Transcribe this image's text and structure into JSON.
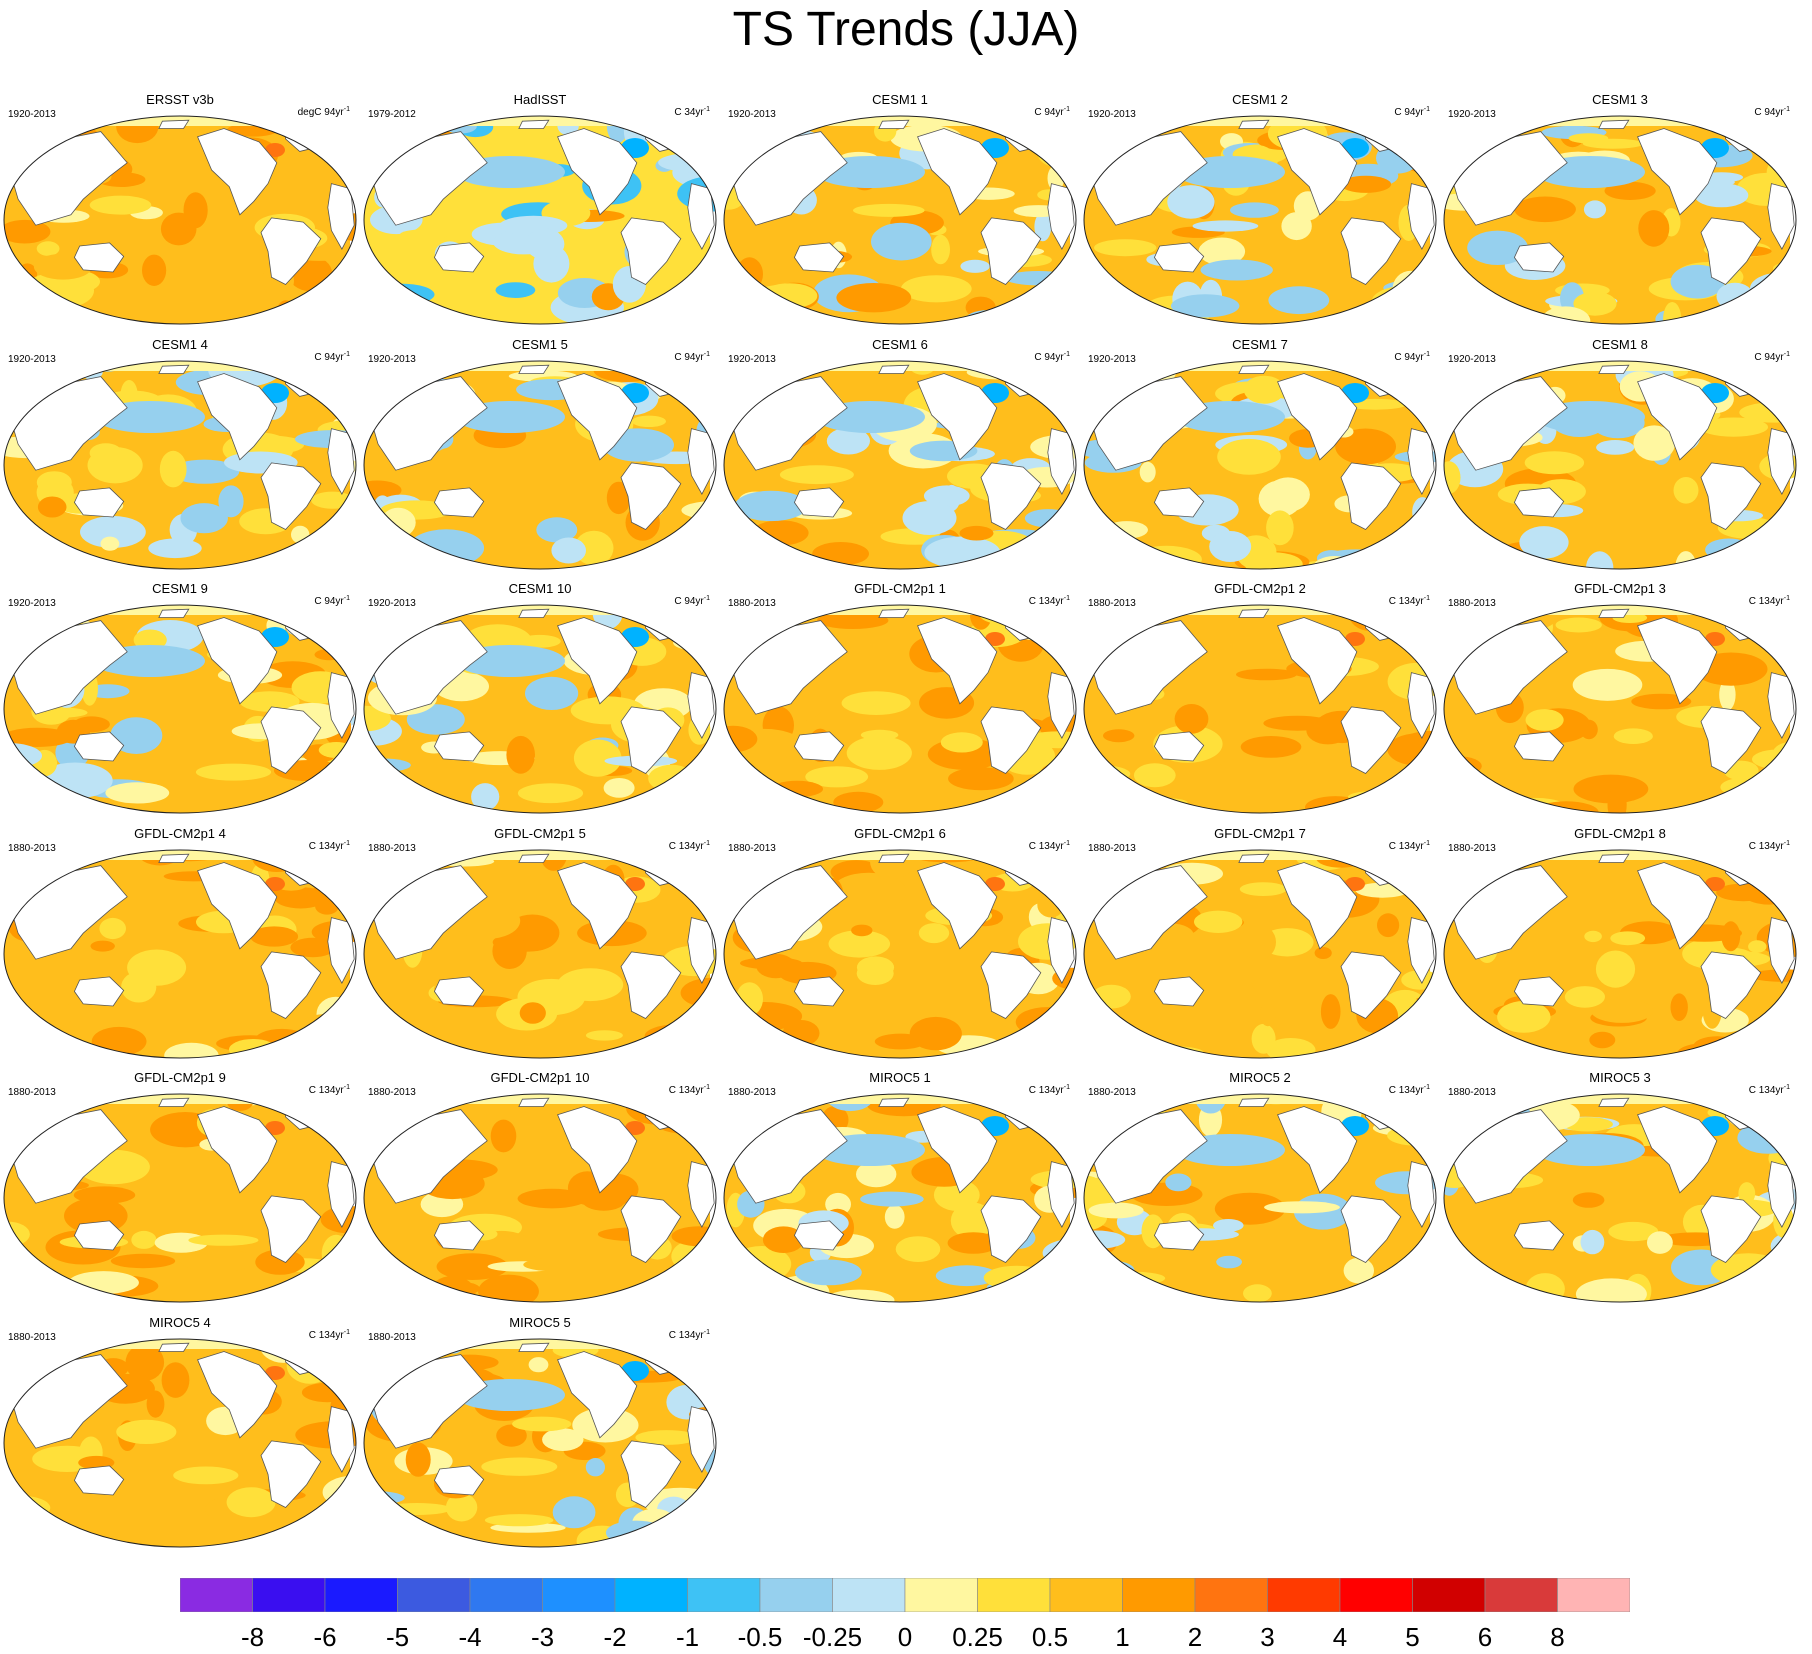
{
  "title": "TS Trends (JJA)",
  "chart_data": {
    "type": "heatmap",
    "description_free": true,
    "panels": [
      {
        "title": "ERSST v3b",
        "period": "1920-2013",
        "units": "degC 94yr",
        "units_exp": "-1",
        "pattern": "warm"
      },
      {
        "title": "HadISST",
        "period": "1979-2012",
        "units": "C 34yr",
        "units_exp": "-1",
        "pattern": "cool"
      },
      {
        "title": "CESM1 1",
        "period": "1920-2013",
        "units": "C 94yr",
        "units_exp": "-1",
        "pattern": "mixed"
      },
      {
        "title": "CESM1 2",
        "period": "1920-2013",
        "units": "C 94yr",
        "units_exp": "-1",
        "pattern": "mixed"
      },
      {
        "title": "CESM1 3",
        "period": "1920-2013",
        "units": "C 94yr",
        "units_exp": "-1",
        "pattern": "mixed"
      },
      {
        "title": "CESM1 4",
        "period": "1920-2013",
        "units": "C 94yr",
        "units_exp": "-1",
        "pattern": "mixed"
      },
      {
        "title": "CESM1 5",
        "period": "1920-2013",
        "units": "C 94yr",
        "units_exp": "-1",
        "pattern": "mixed"
      },
      {
        "title": "CESM1 6",
        "period": "1920-2013",
        "units": "C 94yr",
        "units_exp": "-1",
        "pattern": "mixed"
      },
      {
        "title": "CESM1 7",
        "period": "1920-2013",
        "units": "C 94yr",
        "units_exp": "-1",
        "pattern": "mixed"
      },
      {
        "title": "CESM1 8",
        "period": "1920-2013",
        "units": "C 94yr",
        "units_exp": "-1",
        "pattern": "mixed"
      },
      {
        "title": "CESM1 9",
        "period": "1920-2013",
        "units": "C 94yr",
        "units_exp": "-1",
        "pattern": "mixed"
      },
      {
        "title": "CESM1 10",
        "period": "1920-2013",
        "units": "C 94yr",
        "units_exp": "-1",
        "pattern": "mixed"
      },
      {
        "title": "GFDL-CM2p1 1",
        "period": "1880-2013",
        "units": "C 134yr",
        "units_exp": "-1",
        "pattern": "warm"
      },
      {
        "title": "GFDL-CM2p1 2",
        "period": "1880-2013",
        "units": "C 134yr",
        "units_exp": "-1",
        "pattern": "warm"
      },
      {
        "title": "GFDL-CM2p1 3",
        "period": "1880-2013",
        "units": "C 134yr",
        "units_exp": "-1",
        "pattern": "warm"
      },
      {
        "title": "GFDL-CM2p1 4",
        "period": "1880-2013",
        "units": "C 134yr",
        "units_exp": "-1",
        "pattern": "warm"
      },
      {
        "title": "GFDL-CM2p1 5",
        "period": "1880-2013",
        "units": "C 134yr",
        "units_exp": "-1",
        "pattern": "warm"
      },
      {
        "title": "GFDL-CM2p1 6",
        "period": "1880-2013",
        "units": "C 134yr",
        "units_exp": "-1",
        "pattern": "warm"
      },
      {
        "title": "GFDL-CM2p1 7",
        "period": "1880-2013",
        "units": "C 134yr",
        "units_exp": "-1",
        "pattern": "warm"
      },
      {
        "title": "GFDL-CM2p1 8",
        "period": "1880-2013",
        "units": "C 134yr",
        "units_exp": "-1",
        "pattern": "warm"
      },
      {
        "title": "GFDL-CM2p1 9",
        "period": "1880-2013",
        "units": "C 134yr",
        "units_exp": "-1",
        "pattern": "warm"
      },
      {
        "title": "GFDL-CM2p1 10",
        "period": "1880-2013",
        "units": "C 134yr",
        "units_exp": "-1",
        "pattern": "warm"
      },
      {
        "title": "MIROC5 1",
        "period": "1880-2013",
        "units": "C 134yr",
        "units_exp": "-1",
        "pattern": "mixed"
      },
      {
        "title": "MIROC5 2",
        "period": "1880-2013",
        "units": "C 134yr",
        "units_exp": "-1",
        "pattern": "mixed"
      },
      {
        "title": "MIROC5 3",
        "period": "1880-2013",
        "units": "C 134yr",
        "units_exp": "-1",
        "pattern": "mixed"
      },
      {
        "title": "MIROC5 4",
        "period": "1880-2013",
        "units": "C 134yr",
        "units_exp": "-1",
        "pattern": "warm"
      },
      {
        "title": "MIROC5 5",
        "period": "1880-2013",
        "units": "C 134yr",
        "units_exp": "-1",
        "pattern": "mixed"
      }
    ],
    "colorbar": {
      "colors": [
        "#8a2be2",
        "#3a0ef0",
        "#1a1aff",
        "#3c5ae0",
        "#2f78f0",
        "#1e90ff",
        "#00b2ff",
        "#3ec2f5",
        "#96d0ee",
        "#bde3f5",
        "#fff7a0",
        "#ffe03a",
        "#ffbe1c",
        "#ff9a00",
        "#ff7410",
        "#ff3a00",
        "#ff0000",
        "#d10000",
        "#d93a3a",
        "#ffb4b4"
      ],
      "labels": [
        "-8",
        "-6",
        "-5",
        "-4",
        "-3",
        "-2",
        "-1",
        "-0.5",
        "-0.25",
        "0",
        "0.25",
        "0.5",
        "1",
        "2",
        "3",
        "4",
        "5",
        "6",
        "8"
      ]
    }
  }
}
